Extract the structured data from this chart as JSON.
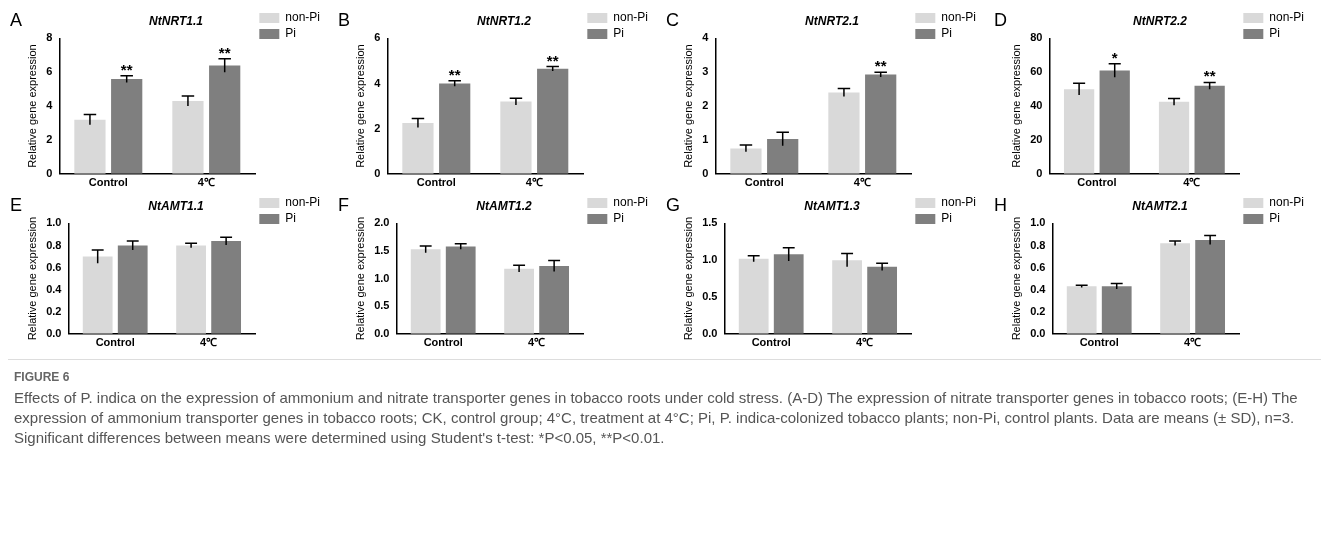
{
  "chart_data": [
    {
      "type": "bar",
      "title": "NtNRT1.1",
      "annotations": [
        "A"
      ],
      "ylabel": "Relative gene expression",
      "categories": [
        "Control",
        "4℃"
      ],
      "legend": "right",
      "grid": false,
      "ylim": [
        0,
        8
      ],
      "yticks": [
        0,
        2,
        4,
        6,
        8
      ],
      "series": [
        {
          "name": "non-Pi",
          "color": "#d9d9d9",
          "values": [
            3.2,
            4.3
          ],
          "errors": [
            0.3,
            0.3
          ]
        },
        {
          "name": "Pi",
          "color": "#7f7f7f",
          "values": [
            5.6,
            6.4
          ],
          "errors": [
            0.2,
            0.4
          ],
          "value_labels": [
            "**",
            "**"
          ]
        }
      ]
    },
    {
      "type": "bar",
      "title": "NtNRT1.2",
      "annotations": [
        "B"
      ],
      "ylabel": "Relative gene expression",
      "categories": [
        "Control",
        "4℃"
      ],
      "legend": "right",
      "grid": false,
      "ylim": [
        0,
        6
      ],
      "yticks": [
        0,
        2,
        4,
        6
      ],
      "series": [
        {
          "name": "non-Pi",
          "color": "#d9d9d9",
          "values": [
            2.25,
            3.2
          ],
          "errors": [
            0.2,
            0.15
          ]
        },
        {
          "name": "Pi",
          "color": "#7f7f7f",
          "values": [
            4.0,
            4.65
          ],
          "errors": [
            0.12,
            0.1
          ],
          "value_labels": [
            "**",
            "**"
          ]
        }
      ]
    },
    {
      "type": "bar",
      "title": "NtNRT2.1",
      "annotations": [
        "C"
      ],
      "ylabel": "Relative gene expression",
      "categories": [
        "Control",
        "4℃"
      ],
      "legend": "right",
      "grid": false,
      "ylim": [
        0,
        4
      ],
      "yticks": [
        0,
        1,
        2,
        3,
        4
      ],
      "series": [
        {
          "name": "non-Pi",
          "color": "#d9d9d9",
          "values": [
            0.75,
            2.4
          ],
          "errors": [
            0.1,
            0.12
          ]
        },
        {
          "name": "Pi",
          "color": "#7f7f7f",
          "values": [
            1.03,
            2.93
          ],
          "errors": [
            0.2,
            0.07
          ],
          "value_labels": [
            null,
            "**"
          ]
        }
      ]
    },
    {
      "type": "bar",
      "title": "NtNRT2.2",
      "annotations": [
        "D"
      ],
      "ylabel": "Relative gene expression",
      "categories": [
        "Control",
        "4℃"
      ],
      "legend": "right",
      "grid": false,
      "ylim": [
        0,
        80
      ],
      "yticks": [
        0,
        20,
        40,
        60,
        80
      ],
      "series": [
        {
          "name": "non-Pi",
          "color": "#d9d9d9",
          "values": [
            50,
            42.5
          ],
          "errors": [
            3.5,
            2
          ]
        },
        {
          "name": "Pi",
          "color": "#7f7f7f",
          "values": [
            61,
            52
          ],
          "errors": [
            4,
            2
          ],
          "value_labels": [
            "*",
            "**"
          ]
        }
      ]
    },
    {
      "type": "bar",
      "title": "NtAMT1.1",
      "annotations": [
        "E"
      ],
      "ylabel": "Relative gene expression",
      "categories": [
        "Control",
        "4℃"
      ],
      "legend": "right",
      "grid": false,
      "ylim": [
        0,
        1
      ],
      "yticks": [
        {
          "value": 0,
          "label": "0.0"
        },
        {
          "value": 0.2,
          "label": "0.2"
        },
        {
          "value": 0.4,
          "label": "0.4"
        },
        {
          "value": 0.6,
          "label": "0.6"
        },
        {
          "value": 0.8,
          "label": "0.8"
        },
        {
          "value": 1,
          "label": "1.0"
        }
      ],
      "series": [
        {
          "name": "non-Pi",
          "color": "#d9d9d9",
          "values": [
            0.7,
            0.8
          ],
          "errors": [
            0.06,
            0.02
          ]
        },
        {
          "name": "Pi",
          "color": "#7f7f7f",
          "values": [
            0.8,
            0.84
          ],
          "errors": [
            0.04,
            0.035
          ]
        }
      ]
    },
    {
      "type": "bar",
      "title": "NtAMT1.2",
      "annotations": [
        "F"
      ],
      "ylabel": "Relative gene expression",
      "categories": [
        "Control",
        "4℃"
      ],
      "legend": "right",
      "grid": false,
      "ylim": [
        0,
        2
      ],
      "yticks": [
        {
          "value": 0,
          "label": "0.0"
        },
        {
          "value": 0.5,
          "label": "0.5"
        },
        {
          "value": 1,
          "label": "1.0"
        },
        {
          "value": 1.5,
          "label": "1.5"
        },
        {
          "value": 2,
          "label": "2.0"
        }
      ],
      "series": [
        {
          "name": "non-Pi",
          "color": "#d9d9d9",
          "values": [
            1.53,
            1.18
          ],
          "errors": [
            0.06,
            0.06
          ]
        },
        {
          "name": "Pi",
          "color": "#7f7f7f",
          "values": [
            1.58,
            1.23
          ],
          "errors": [
            0.05,
            0.1
          ]
        }
      ]
    },
    {
      "type": "bar",
      "title": "NtAMT1.3",
      "annotations": [
        "G"
      ],
      "ylabel": "Relative gene expression",
      "categories": [
        "Control",
        "4℃"
      ],
      "legend": "right",
      "grid": false,
      "ylim": [
        0,
        1.5
      ],
      "yticks": [
        {
          "value": 0,
          "label": "0.0"
        },
        {
          "value": 0.5,
          "label": "0.5"
        },
        {
          "value": 1,
          "label": "1.0"
        },
        {
          "value": 1.5,
          "label": "1.5"
        }
      ],
      "series": [
        {
          "name": "non-Pi",
          "color": "#d9d9d9",
          "values": [
            1.02,
            1.0
          ],
          "errors": [
            0.04,
            0.09
          ]
        },
        {
          "name": "Pi",
          "color": "#7f7f7f",
          "values": [
            1.08,
            0.91
          ],
          "errors": [
            0.09,
            0.05
          ]
        }
      ]
    },
    {
      "type": "bar",
      "title": "NtAMT2.1",
      "annotations": [
        "H"
      ],
      "ylabel": "Relative gene expression",
      "categories": [
        "Control",
        "4℃"
      ],
      "legend": "right",
      "grid": false,
      "ylim": [
        0,
        1
      ],
      "yticks": [
        {
          "value": 0,
          "label": "0.0"
        },
        {
          "value": 0.2,
          "label": "0.2"
        },
        {
          "value": 0.4,
          "label": "0.4"
        },
        {
          "value": 0.6,
          "label": "0.6"
        },
        {
          "value": 0.8,
          "label": "0.8"
        },
        {
          "value": 1,
          "label": "1.0"
        }
      ],
      "series": [
        {
          "name": "non-Pi",
          "color": "#d9d9d9",
          "values": [
            0.43,
            0.82
          ],
          "errors": [
            0.01,
            0.02
          ]
        },
        {
          "name": "Pi",
          "color": "#7f7f7f",
          "values": [
            0.43,
            0.85
          ],
          "errors": [
            0.025,
            0.04
          ]
        }
      ]
    },
    {
      "type": "other",
      "annotations": [
        "FIGURE 6",
        "Effects of P. indica on the expression of ammonium and nitrate transporter genes in tobacco roots under cold stress. (A-D) The expression of nitrate transporter genes in tobacco roots; (E-H) The expression of ammonium transporter genes in tobacco roots; CK, control group; 4°C, treatment at 4°C; Pi, P. indica-colonized tobacco plants; non-Pi, control plants. Data are means (± SD), n=3. Significant differences between means were determined using Student's t-test: *P<0.05, **P<0.01."
      ]
    }
  ]
}
